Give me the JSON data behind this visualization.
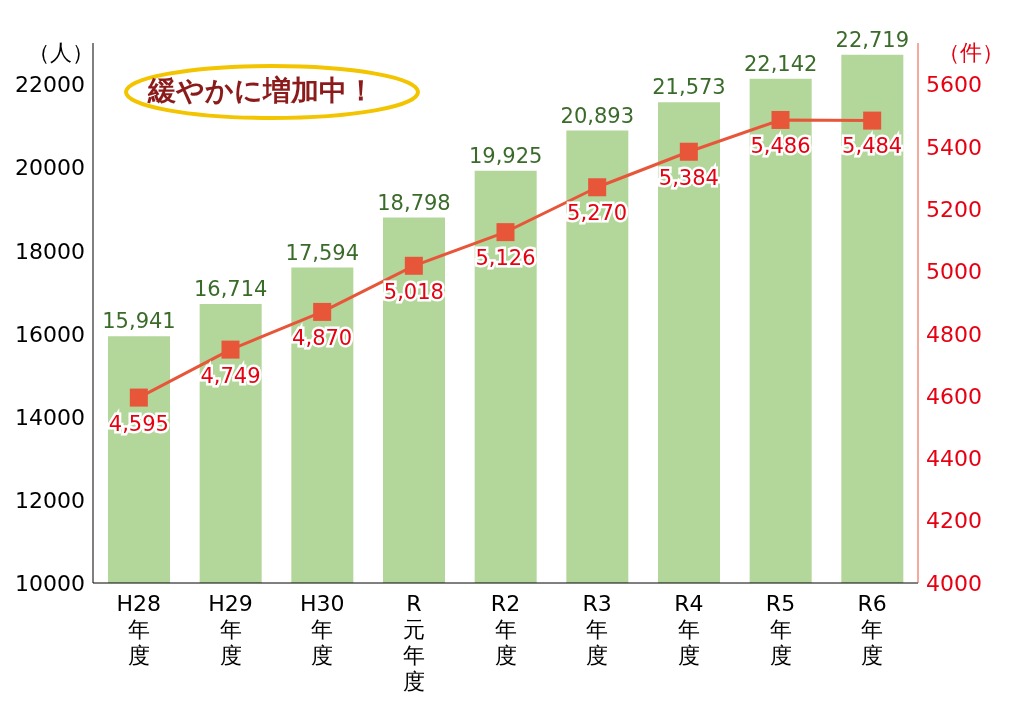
{
  "chart_data": {
    "type": "bar",
    "ylabel": "（人）",
    "y2label": "（件）",
    "annotations": [
      "緩やかに増加中！"
    ],
    "categories": [
      "H28年度",
      "H29年度",
      "H30年度",
      "R元年度",
      "R2年度",
      "R3年度",
      "R4年度",
      "R5年度",
      "R6年度"
    ],
    "series": [
      {
        "color": "#b3d69b",
        "values": [
          15941,
          16714,
          17594,
          18798,
          19925,
          20893,
          21573,
          22142,
          22719
        ],
        "value_labels": [
          "15,941",
          "16,714",
          "17,594",
          "18,798",
          "19,925",
          "20,893",
          "21,573",
          "22,142",
          "22,719"
        ]
      },
      {
        "type": "line",
        "axis": "y2",
        "color": "#e8563a",
        "values": [
          4595,
          4749,
          4870,
          5018,
          5126,
          5270,
          5384,
          5486,
          5484
        ],
        "value_labels": [
          "4,595",
          "4,749",
          "4,870",
          "5,018",
          "5,126",
          "5,270",
          "5,384",
          "5,486",
          "5,484"
        ]
      }
    ],
    "ylim": [
      10000,
      23000
    ],
    "yticks": [
      10000,
      12000,
      14000,
      16000,
      18000,
      20000,
      22000
    ],
    "y2lim": [
      4000,
      5733
    ],
    "y2ticks": [
      4000,
      4200,
      4400,
      4600,
      4800,
      5000,
      5200,
      5400,
      5600
    ],
    "marker": "square",
    "line_style": "solid",
    "grid": false,
    "legend": false
  }
}
